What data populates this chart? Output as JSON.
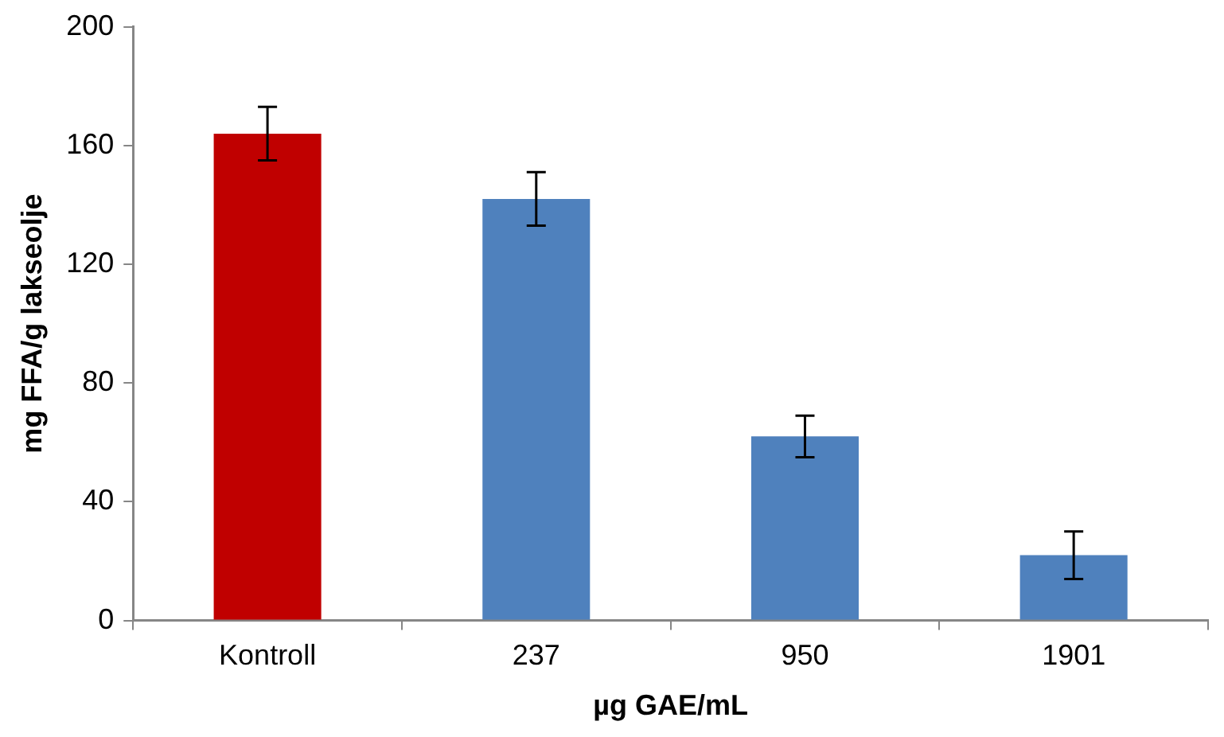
{
  "chart_data": {
    "type": "bar",
    "xlabel": "µg GAE/mL",
    "ylabel": "mg FFA/g lakseolje",
    "categories": [
      "Kontroll",
      "237",
      "950",
      "1901"
    ],
    "values": [
      164,
      142,
      62,
      22
    ],
    "colors": [
      "#c00000",
      "#4f81bd",
      "#4f81bd",
      "#4f81bd"
    ],
    "errors": [
      9,
      9,
      7,
      8
    ],
    "ylim": [
      0,
      200
    ],
    "yticks": [
      0,
      40,
      80,
      120,
      160,
      200
    ],
    "grid": false,
    "legend": false
  }
}
